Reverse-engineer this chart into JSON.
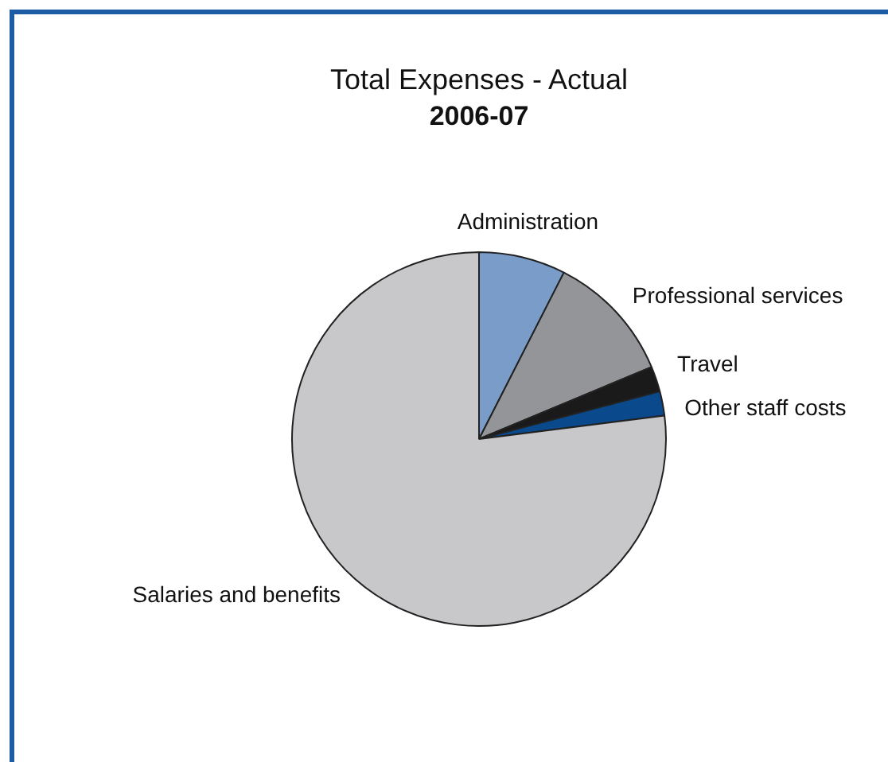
{
  "chart_data": {
    "type": "pie",
    "title": "Total Expenses - Actual",
    "subtitle": "2006-07",
    "categories": [
      "Administration",
      "Professional services",
      "Travel",
      "Other staff costs",
      "Salaries and benefits"
    ],
    "values": [
      7.5,
      11.2,
      2.2,
      2.1,
      77
    ],
    "colors": [
      "#7a9cc8",
      "#939598",
      "#1a1a1a",
      "#0a4a8c",
      "#c8c8ca"
    ],
    "legend": false
  }
}
